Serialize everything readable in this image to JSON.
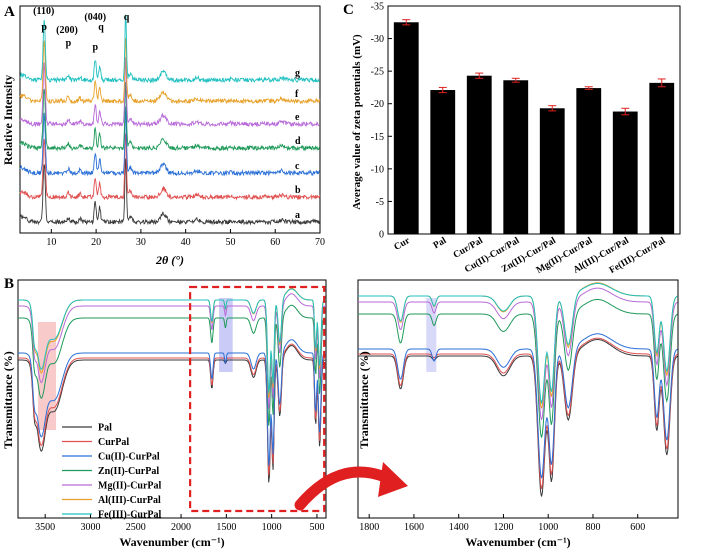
{
  "panels": {
    "A": {
      "letter": "A"
    },
    "B": {
      "letter": "B"
    },
    "C": {
      "letter": "C"
    }
  },
  "chart_data": [
    {
      "id": "A",
      "type": "line",
      "title": "",
      "xlabel": "2θ (°)",
      "ylabel": "Relative Intensity",
      "xlim": [
        3,
        70
      ],
      "xticks": [
        10,
        20,
        30,
        40,
        50,
        60,
        70
      ],
      "series_labels": [
        "a",
        "b",
        "c",
        "d",
        "e",
        "f",
        "g"
      ],
      "series_colors": [
        "#3a3a3a",
        "#e05050",
        "#2a6fd6",
        "#1f9a5a",
        "#b86ad8",
        "#e8a12a",
        "#20c0c0"
      ],
      "peaks": [
        {
          "x": 8.4,
          "h": 7.0,
          "w": 0.35
        },
        {
          "x": 13.8,
          "h": 0.5,
          "w": 0.4
        },
        {
          "x": 16.4,
          "h": 0.35,
          "w": 0.4
        },
        {
          "x": 19.8,
          "h": 2.4,
          "w": 0.3
        },
        {
          "x": 20.8,
          "h": 1.7,
          "w": 0.3
        },
        {
          "x": 26.6,
          "h": 7.8,
          "w": 0.25
        },
        {
          "x": 27.6,
          "h": 0.7,
          "w": 0.5
        },
        {
          "x": 35.0,
          "h": 1.0,
          "w": 0.9
        },
        {
          "x": 42.5,
          "h": 0.25,
          "w": 0.8
        },
        {
          "x": 50.1,
          "h": 0.2,
          "w": 0.3
        },
        {
          "x": 61.5,
          "h": 0.25,
          "w": 0.8
        }
      ],
      "annotations": [
        {
          "text": "(110)",
          "x": 8.3
        },
        {
          "text": "p",
          "x": 8.4
        },
        {
          "text": "(200)",
          "x": 13.5
        },
        {
          "text": "p",
          "x": 13.8
        },
        {
          "text": "(040)",
          "x": 19.8
        },
        {
          "text": "p",
          "x": 19.8
        },
        {
          "text": "q",
          "x": 21.1
        },
        {
          "text": "q",
          "x": 26.8
        }
      ]
    },
    {
      "id": "B-full",
      "type": "line",
      "xlabel": "Wavenumber (cm⁻¹)",
      "ylabel": "Transmittance (%)",
      "xlim": [
        3800,
        400
      ],
      "xticks": [
        3500,
        3000,
        2500,
        2000,
        1500,
        1000,
        500
      ],
      "legend": [
        "Pal",
        "CurPal",
        "Cu(II)-CurPal",
        "Zn(II)-CurPal",
        "Mg(II)-CurPal",
        "Al(III)-CurPal",
        "Fe(III)-CurPal"
      ],
      "legend_colors": [
        "#3a3a3a",
        "#e05050",
        "#2a6fd6",
        "#1f9a5a",
        "#b86ad8",
        "#e8a12a",
        "#20c0c0"
      ],
      "highlight_bands": [
        {
          "from": 3580,
          "to": 3380,
          "color": "#f4a6a6"
        },
        {
          "from": 1580,
          "to": 1430,
          "color": "#a9a9f2"
        }
      ],
      "zoom_box": {
        "from": 1900,
        "to": 420
      }
    },
    {
      "id": "B-zoom",
      "type": "line",
      "xlabel": "Wavenumber (cm⁻¹)",
      "ylabel": "Transmittance (%)",
      "xlim": [
        1850,
        420
      ],
      "xticks": [
        1800,
        1600,
        1400,
        1200,
        1000,
        800,
        600
      ],
      "highlight_bands": [
        {
          "from": 1545,
          "to": 1500,
          "color": "#c8c8f6"
        }
      ]
    },
    {
      "id": "C",
      "type": "bar",
      "title": "",
      "xlabel": "",
      "ylabel": "Average value of zeta potentials (mV)",
      "ylim": [
        0,
        -35
      ],
      "yticks": [
        0,
        -5,
        -10,
        -15,
        -20,
        -25,
        -30,
        -35
      ],
      "categories": [
        "Cur",
        "Pal",
        "Cur/Pal",
        "Cu(II)-Cur/Pal",
        "Zn(II)-Cur/Pal",
        "Mg(II)-Cur/Pal",
        "Al(III)-Cur/Pal",
        "Fe(III)-Cur/Pal"
      ],
      "values": [
        -32.5,
        -22.1,
        -24.3,
        -23.6,
        -19.3,
        -22.4,
        -18.8,
        -23.2
      ],
      "errors": [
        0.4,
        0.4,
        0.4,
        0.3,
        0.4,
        0.2,
        0.5,
        0.6
      ],
      "bar_color": "#000000",
      "error_color": "#e02020"
    }
  ]
}
